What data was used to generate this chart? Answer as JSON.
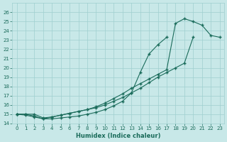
{
  "xlabel": "Humidex (Indice chaleur)",
  "ylabel": "",
  "background_color": "#c8e8e8",
  "grid_color": "#9fcfcf",
  "line_color": "#1a6b5a",
  "x_values": [
    0,
    1,
    2,
    3,
    4,
    5,
    6,
    7,
    8,
    9,
    10,
    11,
    12,
    13,
    14,
    15,
    16,
    17,
    18,
    19,
    20,
    21,
    22,
    23
  ],
  "line1": [
    15.0,
    14.9,
    14.7,
    14.5,
    14.7,
    14.9,
    15.1,
    15.3,
    15.5,
    15.7,
    16.0,
    16.4,
    16.8,
    17.3,
    17.8,
    18.4,
    19.0,
    19.5,
    20.0,
    20.5,
    23.3,
    null,
    null,
    null
  ],
  "line2": [
    15.0,
    15.0,
    14.8,
    14.5,
    14.5,
    14.6,
    14.7,
    14.8,
    15.0,
    15.2,
    15.5,
    15.9,
    16.4,
    17.3,
    19.5,
    21.5,
    22.5,
    23.3,
    null,
    null,
    null,
    null,
    null,
    null
  ],
  "line3": [
    15.0,
    15.0,
    15.0,
    14.6,
    14.7,
    14.9,
    15.1,
    15.3,
    15.5,
    15.8,
    16.2,
    16.7,
    17.2,
    17.8,
    18.3,
    18.8,
    19.3,
    19.8,
    24.8,
    25.3,
    25.0,
    24.6,
    23.5,
    23.3
  ],
  "xlim": [
    -0.5,
    23.5
  ],
  "ylim": [
    14.0,
    27.0
  ],
  "yticks": [
    14,
    15,
    16,
    17,
    18,
    19,
    20,
    21,
    22,
    23,
    24,
    25,
    26
  ],
  "xticks": [
    0,
    1,
    2,
    3,
    4,
    5,
    6,
    7,
    8,
    9,
    10,
    11,
    12,
    13,
    14,
    15,
    16,
    17,
    18,
    19,
    20,
    21,
    22,
    23
  ]
}
